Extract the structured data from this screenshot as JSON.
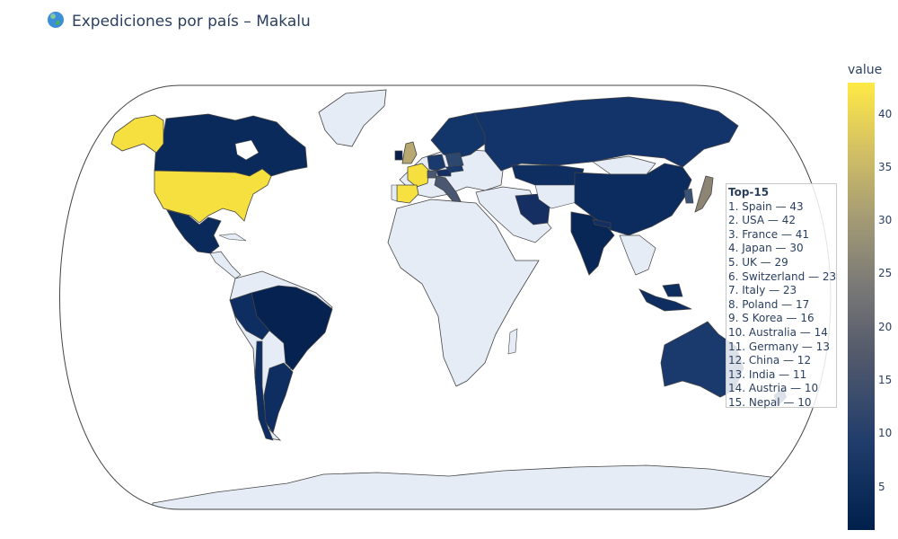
{
  "title": {
    "text": "Expediciones por país – Makalu",
    "icon": "globe-icon"
  },
  "colors": {
    "land_default": "#e5ecf6",
    "border": "#444444",
    "frame": "#444444",
    "colorscale": [
      "#00204c",
      "#213d6b",
      "#555b6c",
      "#7b7a77",
      "#a59c74",
      "#d3c164",
      "#ffe945"
    ]
  },
  "colorbar": {
    "title": "value",
    "range": [
      1,
      43
    ],
    "ticks": [
      "40",
      "35",
      "30",
      "25",
      "20",
      "15",
      "10",
      "5"
    ]
  },
  "annotation": {
    "title": "Top-15",
    "items": [
      "1. Spain — 43",
      "2. USA — 42",
      "3. France — 41",
      "4. Japan — 30",
      "5. UK — 29",
      "6. Switzerland — 23",
      "7. Italy — 23",
      "8. Poland — 17",
      "9. S Korea — 16",
      "10. Australia — 14",
      "11. Germany — 13",
      "12. China — 12",
      "13. India — 11",
      "14. Austria — 10",
      "15. Nepal — 10"
    ]
  },
  "map_data": {
    "projection": "natural earth",
    "countries": [
      {
        "name": "Spain",
        "value": 43
      },
      {
        "name": "USA",
        "value": 42
      },
      {
        "name": "France",
        "value": 41
      },
      {
        "name": "Japan",
        "value": 30
      },
      {
        "name": "UK",
        "value": 29
      },
      {
        "name": "Switzerland",
        "value": 23
      },
      {
        "name": "Italy",
        "value": 23
      },
      {
        "name": "Poland",
        "value": 17
      },
      {
        "name": "S Korea",
        "value": 16
      },
      {
        "name": "Australia",
        "value": 14
      },
      {
        "name": "Germany",
        "value": 13
      },
      {
        "name": "China",
        "value": 12
      },
      {
        "name": "India",
        "value": 11
      },
      {
        "name": "Austria",
        "value": 10
      },
      {
        "name": "Nepal",
        "value": 10
      },
      {
        "name": "Canada",
        "value": 4
      },
      {
        "name": "Russia",
        "value": 5
      },
      {
        "name": "Brazil",
        "value": 2
      },
      {
        "name": "Mexico",
        "value": 3
      },
      {
        "name": "Peru",
        "value": 3
      },
      {
        "name": "Argentina",
        "value": 3
      },
      {
        "name": "Chile",
        "value": 3
      },
      {
        "name": "Iran",
        "value": 5
      },
      {
        "name": "Kazakhstan",
        "value": 4
      },
      {
        "name": "Norway",
        "value": 5
      },
      {
        "name": "Sweden",
        "value": 4
      },
      {
        "name": "Finland",
        "value": 3
      },
      {
        "name": "Indonesia",
        "value": 3
      },
      {
        "name": "New Zealand",
        "value": 4
      },
      {
        "name": "Ireland",
        "value": 2
      },
      {
        "name": "Czechia",
        "value": 6
      },
      {
        "name": "Slovakia",
        "value": 4
      },
      {
        "name": "Hungary",
        "value": 3
      },
      {
        "name": "Slovenia",
        "value": 5
      }
    ]
  }
}
